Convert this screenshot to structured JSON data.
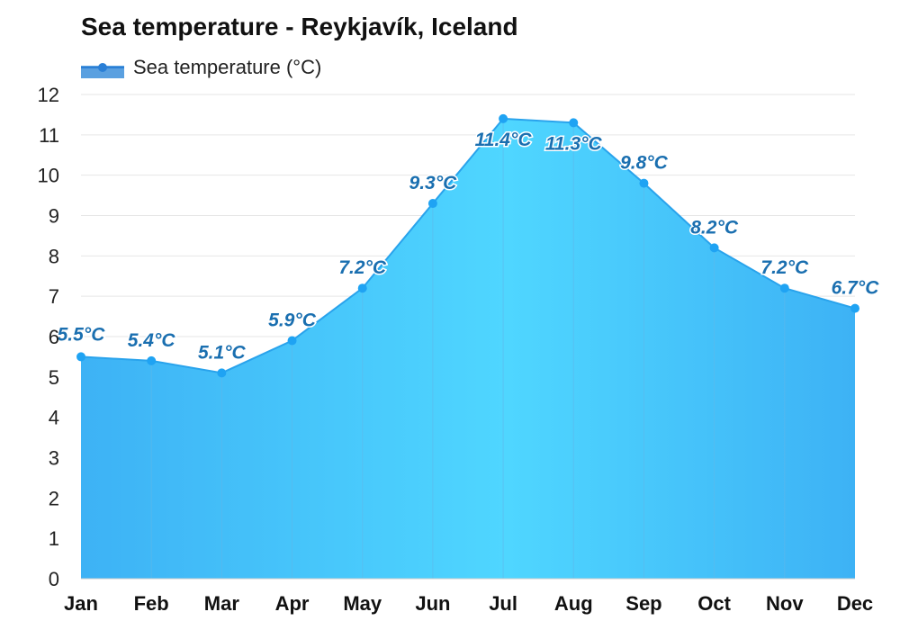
{
  "chart_data": {
    "type": "area",
    "title": "Sea temperature - Reykjavík, Iceland",
    "categories": [
      "Jan",
      "Feb",
      "Mar",
      "Apr",
      "May",
      "Jun",
      "Jul",
      "Aug",
      "Sep",
      "Oct",
      "Nov",
      "Dec"
    ],
    "series": [
      {
        "name": "Sea temperature (°C)",
        "values": [
          5.5,
          5.4,
          5.1,
          5.9,
          7.2,
          9.3,
          11.4,
          11.3,
          9.8,
          8.2,
          7.2,
          6.7
        ],
        "labels": [
          "5.5°C",
          "5.4°C",
          "5.1°C",
          "5.9°C",
          "7.2°C",
          "9.3°C",
          "11.4°C",
          "11.3°C",
          "9.8°C",
          "8.2°C",
          "7.2°C",
          "6.7°C"
        ],
        "color": "#2fa8f0"
      }
    ],
    "ylim": [
      0,
      12
    ],
    "yticks": [
      "0",
      "1",
      "2",
      "3",
      "4",
      "5",
      "6",
      "7",
      "8",
      "9",
      "10",
      "11",
      "12"
    ],
    "xlabel": "",
    "ylabel": "",
    "grid": true,
    "legend_position": "top-left",
    "colors": {
      "area_light": "#4fd6ff",
      "area_dark": "#3db2f5",
      "line": "#29a3ec",
      "marker": "#1fa3f3",
      "label": "#1a6fb0",
      "grid": "#e6e6e6"
    }
  }
}
